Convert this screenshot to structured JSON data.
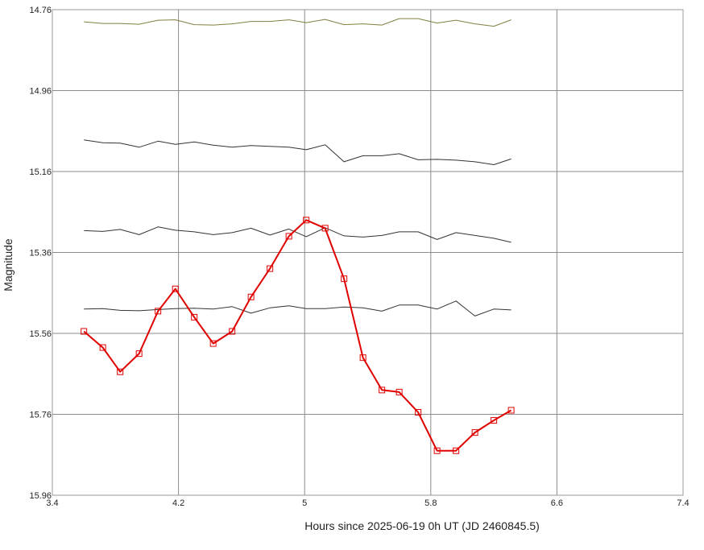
{
  "chart_data": {
    "type": "line",
    "xlabel": "Hours since 2025-06-19 0h UT (JD 2460845.5)",
    "ylabel": "Magnitude",
    "xlim": [
      3.4,
      7.4
    ],
    "ylim": [
      14.76,
      15.96
    ],
    "y_inverted": true,
    "grid": true,
    "x_ticks": [
      "3.4",
      "4.2",
      "5",
      "5.8",
      "6.6",
      "7.4"
    ],
    "y_ticks": [
      "14.76",
      "14.96",
      "15.16",
      "15.36",
      "15.56",
      "15.76",
      "15.96"
    ],
    "x": [
      3.6,
      3.72,
      3.83,
      3.95,
      4.07,
      4.18,
      4.3,
      4.42,
      4.54,
      4.66,
      4.78,
      4.9,
      5.01,
      5.13,
      5.25,
      5.37,
      5.49,
      5.6,
      5.72,
      5.84,
      5.96,
      6.08,
      6.2,
      6.31
    ],
    "series": [
      {
        "color": "#e00000",
        "marker": "square",
        "values": [
          15.555,
          15.595,
          15.655,
          15.61,
          15.505,
          15.45,
          15.52,
          15.585,
          15.555,
          15.47,
          15.4,
          15.32,
          15.28,
          15.3,
          15.425,
          15.62,
          15.7,
          15.705,
          15.755,
          15.85,
          15.85,
          15.805,
          15.775,
          15.75
        ]
      },
      {
        "color": "#808040",
        "values": [
          14.79,
          14.794,
          14.794,
          14.796,
          14.786,
          14.785,
          14.797,
          14.798,
          14.795,
          14.789,
          14.789,
          14.785,
          14.792,
          14.784,
          14.797,
          14.795,
          14.798,
          14.782,
          14.782,
          14.793,
          14.786,
          14.795,
          14.801,
          14.785
        ]
      },
      {
        "color": "#333333",
        "values": [
          15.082,
          15.089,
          15.09,
          15.1,
          15.085,
          15.093,
          15.087,
          15.095,
          15.1,
          15.096,
          15.098,
          15.1,
          15.106,
          15.094,
          15.136,
          15.121,
          15.121,
          15.116,
          15.131,
          15.13,
          15.132,
          15.136,
          15.143,
          15.129
        ]
      },
      {
        "color": "#333333",
        "values": [
          15.306,
          15.308,
          15.303,
          15.316,
          15.297,
          15.305,
          15.309,
          15.316,
          15.311,
          15.3,
          15.317,
          15.302,
          15.321,
          15.299,
          15.319,
          15.322,
          15.318,
          15.309,
          15.309,
          15.328,
          15.311,
          15.318,
          15.325,
          15.335
        ]
      },
      {
        "color": "#333333",
        "values": [
          15.5,
          15.499,
          15.503,
          15.504,
          15.501,
          15.499,
          15.498,
          15.5,
          15.494,
          15.51,
          15.497,
          15.492,
          15.499,
          15.499,
          15.495,
          15.497,
          15.505,
          15.49,
          15.49,
          15.5,
          15.48,
          15.517,
          15.5,
          15.502
        ]
      }
    ]
  }
}
